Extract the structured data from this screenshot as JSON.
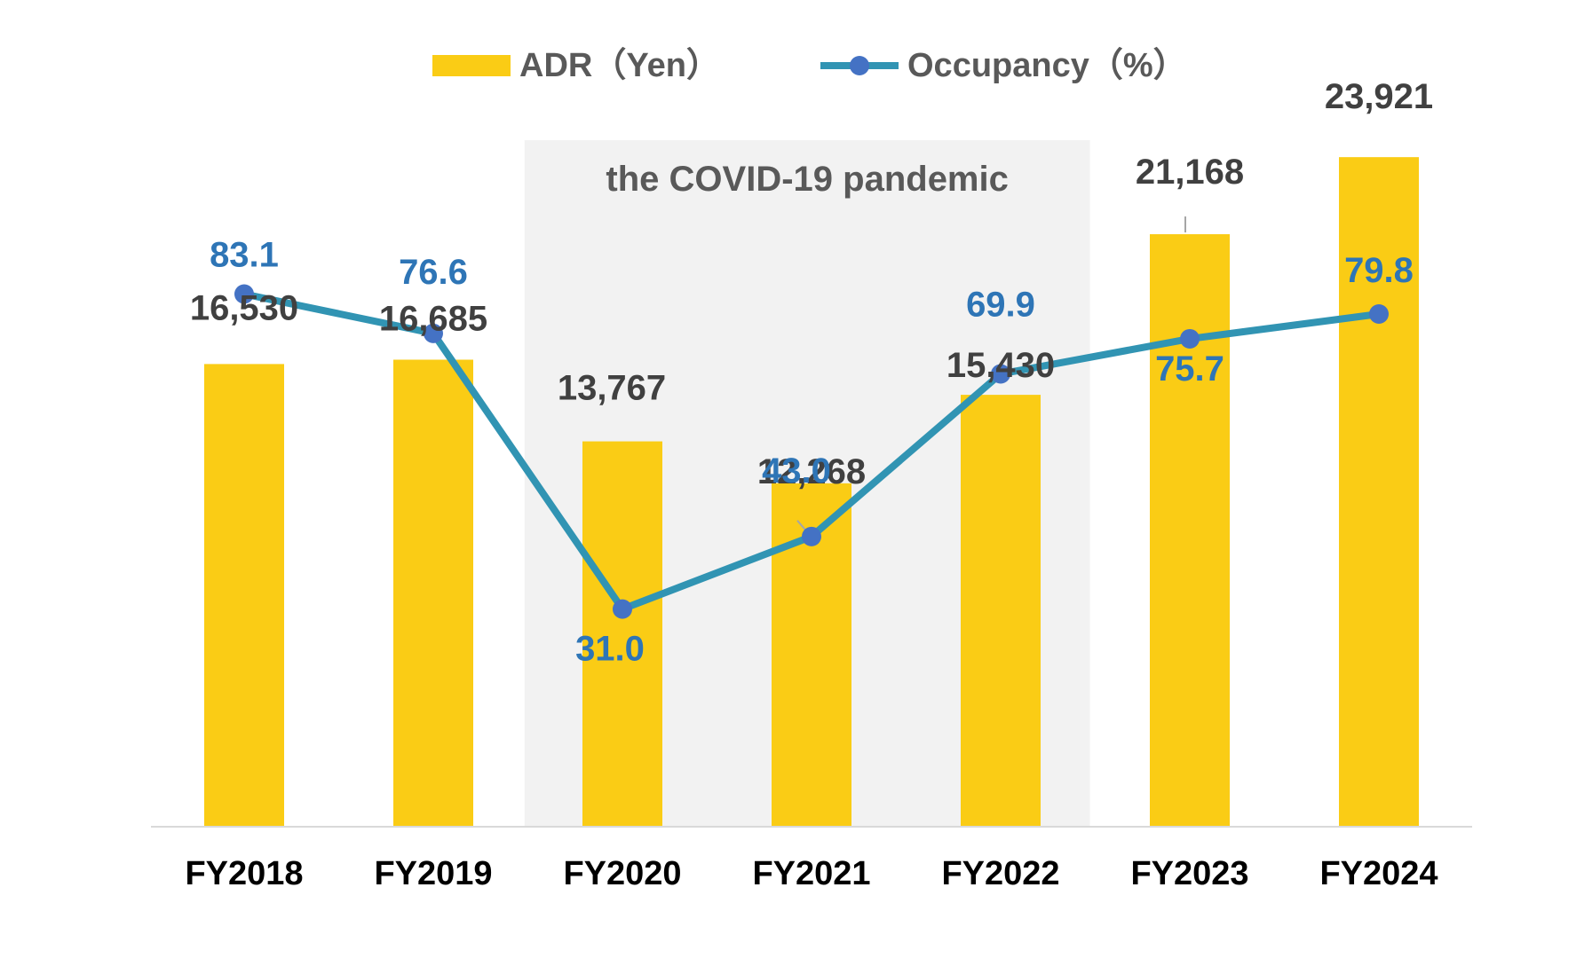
{
  "chart_data": {
    "type": "bar",
    "categories": [
      "FY2018",
      "FY2019",
      "FY2020",
      "FY2021",
      "FY2022",
      "FY2023",
      "FY2024"
    ],
    "series": [
      {
        "name": "ADR（Yen）",
        "type": "bar",
        "axis": "left",
        "values": [
          16530,
          16685,
          13767,
          12268,
          15430,
          21168,
          23921
        ],
        "labels": [
          "16,530",
          "16,685",
          "13,767",
          "12,268",
          "15,430",
          "21,168",
          "23,921"
        ]
      },
      {
        "name": "Occupancy（%）",
        "type": "line",
        "axis": "right",
        "values": [
          83.1,
          76.6,
          31.0,
          43.0,
          69.9,
          75.7,
          79.8
        ],
        "labels": [
          "83.1",
          "76.6",
          "31.0",
          "43.0",
          "69.9",
          "75.7",
          "79.8"
        ]
      }
    ],
    "left_axis_range": [
      0,
      27000
    ],
    "right_axis_range": [
      -5,
      120
    ],
    "grid": false,
    "legend_position": "top",
    "annotation": {
      "text": "the COVID-19 pandemic",
      "span": [
        "FY2020",
        "FY2022"
      ]
    },
    "colors": {
      "bar": "#FACC15",
      "line": "#3194B3",
      "marker": "#4472C4",
      "bar_label": "#404040",
      "line_label": "#2E75B6",
      "shade": "#F2F2F2",
      "axis": "#D9D9D9"
    }
  }
}
